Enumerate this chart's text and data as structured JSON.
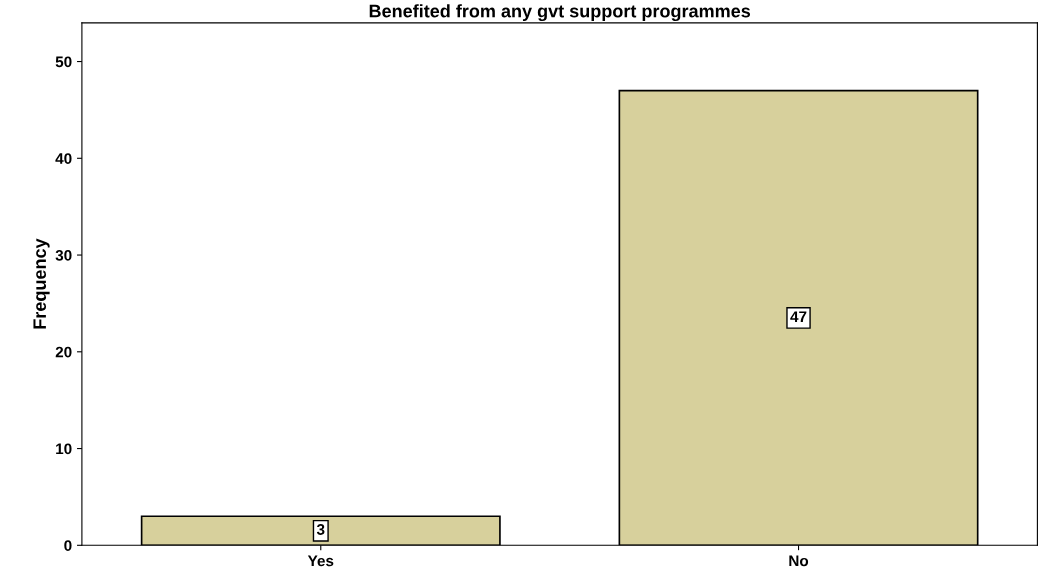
{
  "chart_data": {
    "type": "bar",
    "title": "Benefited from any gvt support programmes",
    "ylabel": "Frequency",
    "categories": [
      "Yes",
      "No"
    ],
    "values": [
      3,
      47
    ],
    "color": "#d7d09c",
    "ylim": [
      0,
      54
    ],
    "yticks": [
      0,
      10,
      20,
      30,
      40,
      50
    ],
    "grid": false,
    "data_labels": true
  }
}
